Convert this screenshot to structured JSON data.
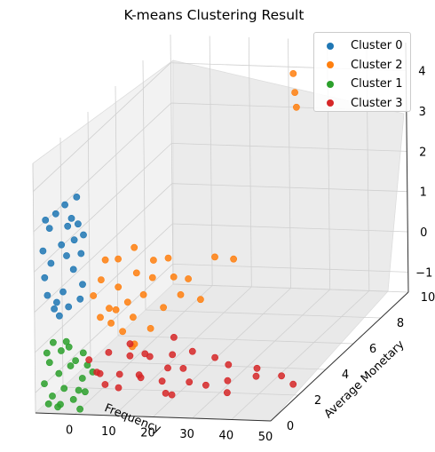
{
  "chart_data": {
    "type": "scatter",
    "projection": "3d",
    "title": "K-means Clustering Result",
    "xlabel": "Frequency",
    "ylabel": "Average Monetary",
    "zlabel": "",
    "xlim": [
      -10,
      50
    ],
    "ylim": [
      0,
      10
    ],
    "zlim": [
      -1.5,
      4.7
    ],
    "xticks": [
      "0",
      "10",
      "20",
      "30",
      "40",
      "50"
    ],
    "yticks": [
      "0",
      "2",
      "4",
      "6",
      "8",
      "10"
    ],
    "zticks": [
      "−1",
      "0",
      "1",
      "2",
      "3",
      "4"
    ],
    "grid": true,
    "legend_position": "top-right",
    "series": [
      {
        "name": "Cluster 0",
        "color": "#1f77b4",
        "points": [
          [
            -8,
            0.1,
            2.5
          ],
          [
            -8,
            0.2,
            1.8
          ],
          [
            -7,
            0.3,
            3.0
          ],
          [
            -6,
            0.1,
            2.2
          ],
          [
            -5,
            0.2,
            3.4
          ],
          [
            -4,
            0.3,
            2.6
          ],
          [
            -3,
            0.1,
            1.5
          ],
          [
            -2,
            0.2,
            3.1
          ],
          [
            -1,
            0.3,
            2.0
          ],
          [
            0,
            0.1,
            2.8
          ],
          [
            1,
            0.2,
            1.3
          ],
          [
            -6,
            0.3,
            1.0
          ],
          [
            -4,
            0.1,
            0.9
          ],
          [
            -2,
            0.2,
            1.1
          ],
          [
            -7,
            0.1,
            1.4
          ],
          [
            -3,
            0.3,
            3.6
          ],
          [
            -1,
            0.2,
            3.3
          ],
          [
            1,
            0.3,
            2.4
          ],
          [
            2,
            0.1,
            1.7
          ],
          [
            -5,
            0.2,
            1.2
          ],
          [
            -8,
            0.3,
            3.2
          ],
          [
            0,
            0.3,
            3.8
          ],
          [
            1,
            0.1,
            3.2
          ],
          [
            -2,
            0.1,
            2.4
          ],
          [
            2,
            0.2,
            2.9
          ]
        ]
      },
      {
        "name": "Cluster 2",
        "color": "#ff7f0e",
        "points": [
          [
            -2,
            2.0,
            0.8
          ],
          [
            0,
            2.0,
            1.2
          ],
          [
            2,
            2.0,
            0.5
          ],
          [
            4,
            2.1,
            1.0
          ],
          [
            6,
            2.2,
            0.6
          ],
          [
            8,
            2.3,
            1.3
          ],
          [
            -1,
            2.2,
            0.2
          ],
          [
            1,
            2.4,
            0.0
          ],
          [
            3,
            2.2,
            0.4
          ],
          [
            5,
            2.1,
            -0.1
          ],
          [
            7,
            2.3,
            0.2
          ],
          [
            9,
            2.5,
            0.7
          ],
          [
            11,
            2.6,
            1.1
          ],
          [
            13,
            2.8,
            0.3
          ],
          [
            15,
            3.0,
            1.0
          ],
          [
            18,
            3.2,
            0.9
          ],
          [
            22,
            4.0,
            1.2
          ],
          [
            25,
            4.5,
            1.0
          ],
          [
            12,
            2.4,
            1.6
          ],
          [
            16,
            3.2,
            0.5
          ],
          [
            20,
            3.5,
            0.3
          ],
          [
            -1,
            2.6,
            1.5
          ],
          [
            3,
            2.4,
            1.6
          ],
          [
            8,
            2.1,
            -0.4
          ],
          [
            10,
            2.7,
            -0.2
          ],
          [
            5,
            3.0,
            1.7
          ],
          [
            14,
            2.9,
            1.5
          ],
          [
            6,
            2.5,
            -0.6
          ],
          [
            23,
            9.5,
            4.0
          ],
          [
            23,
            9.6,
            3.5
          ],
          [
            23,
            9.7,
            3.1
          ]
        ]
      },
      {
        "name": "Cluster 1",
        "color": "#2ca02c",
        "points": [
          [
            -8,
            0.1,
            -0.8
          ],
          [
            -7,
            0.2,
            -0.3
          ],
          [
            -6,
            0.1,
            -1.1
          ],
          [
            -5,
            0.3,
            -0.6
          ],
          [
            -4,
            0.2,
            0.0
          ],
          [
            -3,
            0.1,
            -0.9
          ],
          [
            -2,
            0.3,
            -0.4
          ],
          [
            -1,
            0.2,
            -1.2
          ],
          [
            0,
            0.1,
            -0.2
          ],
          [
            1,
            0.3,
            -0.7
          ],
          [
            2,
            0.2,
            -1.0
          ],
          [
            3,
            0.1,
            -0.3
          ],
          [
            -8,
            0.3,
            -0.1
          ],
          [
            -6,
            0.2,
            0.2
          ],
          [
            -4,
            0.1,
            -1.3
          ],
          [
            -2,
            0.2,
            0.1
          ],
          [
            0,
            0.3,
            -1.0
          ],
          [
            2,
            0.1,
            0.0
          ],
          [
            -7,
            0.1,
            -1.3
          ],
          [
            4,
            0.2,
            -0.5
          ],
          [
            1,
            0.1,
            -1.4
          ],
          [
            -5,
            0.2,
            -1.4
          ],
          [
            -3,
            0.3,
            0.2
          ]
        ]
      },
      {
        "name": "Cluster 3",
        "color": "#d62728",
        "points": [
          [
            2,
            0.5,
            -0.3
          ],
          [
            4,
            0.5,
            -0.6
          ],
          [
            6,
            0.8,
            -0.2
          ],
          [
            8,
            1.0,
            -0.8
          ],
          [
            10,
            1.2,
            -0.4
          ],
          [
            12,
            1.4,
            -1.0
          ],
          [
            14,
            1.5,
            -0.5
          ],
          [
            16,
            1.8,
            -1.2
          ],
          [
            18,
            2.0,
            -0.6
          ],
          [
            20,
            2.2,
            -1.0
          ],
          [
            5,
            0.8,
            -1.0
          ],
          [
            9,
            1.5,
            -0.2
          ],
          [
            13,
            1.0,
            -0.8
          ],
          [
            17,
            2.4,
            -0.3
          ],
          [
            7,
            1.2,
            -1.2
          ],
          [
            11,
            2.0,
            -0.6
          ],
          [
            15,
            2.5,
            -1.1
          ],
          [
            3,
            1.0,
            -0.8
          ],
          [
            19,
            1.2,
            -1.3
          ],
          [
            21,
            2.6,
            -0.7
          ],
          [
            24,
            1.5,
            -1.1
          ],
          [
            26,
            2.8,
            -0.9
          ],
          [
            28,
            3.2,
            -1.2
          ],
          [
            32,
            2.0,
            -1.2
          ],
          [
            36,
            3.0,
            -1.2
          ],
          [
            40,
            1.8,
            -1.0
          ],
          [
            44,
            2.5,
            -1.2
          ],
          [
            48,
            2.2,
            -1.3
          ],
          [
            30,
            1.0,
            -1.0
          ],
          [
            22,
            0.8,
            -1.2
          ],
          [
            34,
            1.4,
            -1.3
          ]
        ]
      }
    ]
  }
}
